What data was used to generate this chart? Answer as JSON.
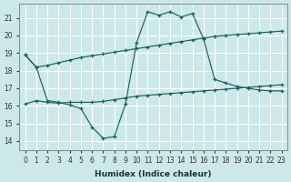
{
  "xlabel": "Humidex (Indice chaleur)",
  "background_color": "#cce8e8",
  "grid_color": "#ffffff",
  "line_color": "#1a6060",
  "xlim": [
    -0.5,
    23.5
  ],
  "ylim": [
    13.5,
    21.8
  ],
  "yticks": [
    14,
    15,
    16,
    17,
    18,
    19,
    20,
    21
  ],
  "xtick_labels": [
    "0",
    "1",
    "2",
    "3",
    "4",
    "5",
    "6",
    "7",
    "8",
    "9",
    "10",
    "11",
    "12",
    "13",
    "14",
    "15",
    "16",
    "17",
    "18",
    "19",
    "20",
    "21",
    "22",
    "23"
  ],
  "curve1_x": [
    0,
    1,
    2,
    3,
    4,
    5,
    6,
    7,
    8,
    9,
    10,
    11,
    12,
    13,
    14,
    15,
    16,
    17,
    18,
    19,
    20,
    21,
    22,
    23
  ],
  "curve1_y": [
    18.9,
    18.2,
    18.3,
    18.45,
    18.6,
    18.75,
    18.85,
    18.95,
    19.05,
    19.15,
    19.25,
    19.35,
    19.45,
    19.55,
    19.65,
    19.75,
    19.85,
    19.95,
    20.0,
    20.05,
    20.1,
    20.15,
    20.2,
    20.25
  ],
  "curve2_x": [
    0,
    1,
    2,
    3,
    4,
    5,
    6,
    7,
    8,
    9,
    10,
    11,
    12,
    13,
    14,
    15,
    16,
    17,
    18,
    19,
    20,
    21,
    22,
    23
  ],
  "curve2_y": [
    18.9,
    18.2,
    16.3,
    16.2,
    16.05,
    15.85,
    14.8,
    14.15,
    14.25,
    16.1,
    19.6,
    21.35,
    21.15,
    21.35,
    21.05,
    21.25,
    19.8,
    17.5,
    17.3,
    17.1,
    17.0,
    16.9,
    16.85,
    16.85
  ],
  "curve3_x": [
    0,
    1,
    2,
    3,
    4,
    5,
    6,
    7,
    8,
    9,
    10,
    11,
    12,
    13,
    14,
    15,
    16,
    17,
    18,
    19,
    20,
    21,
    22,
    23
  ],
  "curve3_y": [
    16.1,
    16.3,
    16.2,
    16.15,
    16.2,
    16.2,
    16.2,
    16.25,
    16.35,
    16.45,
    16.55,
    16.6,
    16.65,
    16.7,
    16.75,
    16.8,
    16.85,
    16.9,
    16.95,
    17.0,
    17.05,
    17.1,
    17.15,
    17.2
  ]
}
